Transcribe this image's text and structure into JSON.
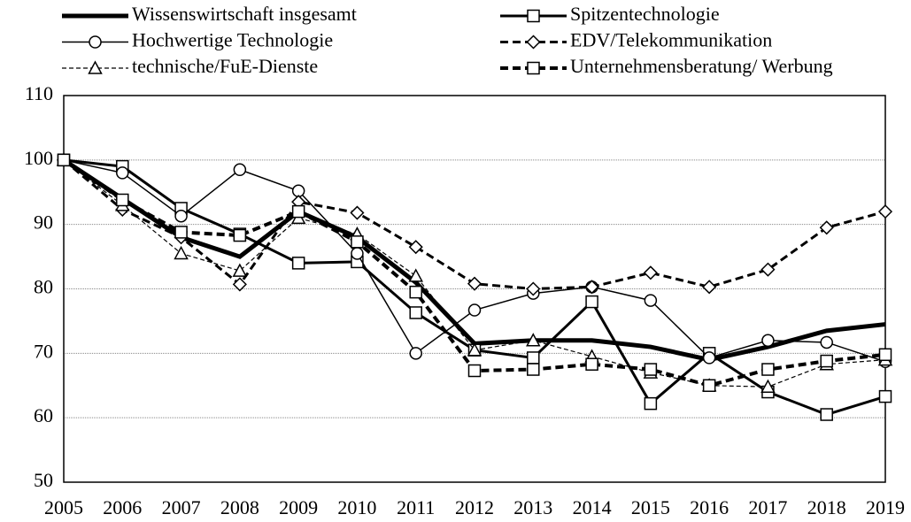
{
  "chart_data": {
    "type": "line",
    "categories": [
      "2005",
      "2006",
      "2007",
      "2008",
      "2009",
      "2010",
      "2011",
      "2012",
      "2013",
      "2014",
      "2015",
      "2016",
      "2017",
      "2018",
      "2019"
    ],
    "ylim": [
      50,
      110
    ],
    "yticks": [
      50,
      60,
      70,
      80,
      90,
      100,
      110
    ],
    "grid": true,
    "series": [
      {
        "name": "Wissenswirtschaft insgesamt",
        "color": "#000000",
        "line_width": 5,
        "dashed": false,
        "marker": "none",
        "values": [
          100,
          94,
          88,
          85,
          92,
          88,
          81,
          71.5,
          72,
          72,
          71,
          69,
          71,
          73.5,
          74.5
        ]
      },
      {
        "name": "Spitzentechnologie",
        "color": "#000000",
        "line_width": 3,
        "dashed": false,
        "marker": "square",
        "values": [
          100,
          99,
          92.5,
          88.5,
          84,
          84.2,
          76.3,
          70.5,
          69.3,
          78,
          62.2,
          70,
          64,
          60.5,
          63.3
        ]
      },
      {
        "name": "Hochwertige Technologie",
        "color": "#000000",
        "line_width": 1.5,
        "dashed": false,
        "marker": "circle",
        "values": [
          100,
          98,
          91.3,
          98.5,
          95.2,
          85.5,
          70,
          76.7,
          79.3,
          80.3,
          78.2,
          69.3,
          72,
          71.7,
          68.7
        ]
      },
      {
        "name": "EDV/Telekommunikation",
        "color": "#000000",
        "line_width": 3,
        "dashed": true,
        "marker": "diamond",
        "values": [
          100,
          92.3,
          88,
          80.7,
          93.5,
          91.8,
          86.5,
          80.8,
          80,
          80.3,
          82.5,
          80.3,
          83,
          89.5,
          92
        ]
      },
      {
        "name": "technische/FuE-Dienste",
        "color": "#000000",
        "line_width": 1.2,
        "dashed": true,
        "marker": "triangle",
        "values": [
          100,
          93,
          85.5,
          82.8,
          91,
          88.5,
          82,
          70.5,
          72,
          69.5,
          67,
          65,
          64.8,
          68.3,
          69
        ]
      },
      {
        "name": "Unternehmensberatung/ Werbung",
        "color": "#000000",
        "line_width": 4,
        "dashed": true,
        "marker": "square",
        "values": [
          100,
          93.8,
          88.8,
          88.3,
          92,
          87.3,
          79.5,
          67.3,
          67.5,
          68.3,
          67.5,
          65,
          67.5,
          68.8,
          69.8
        ]
      }
    ]
  }
}
